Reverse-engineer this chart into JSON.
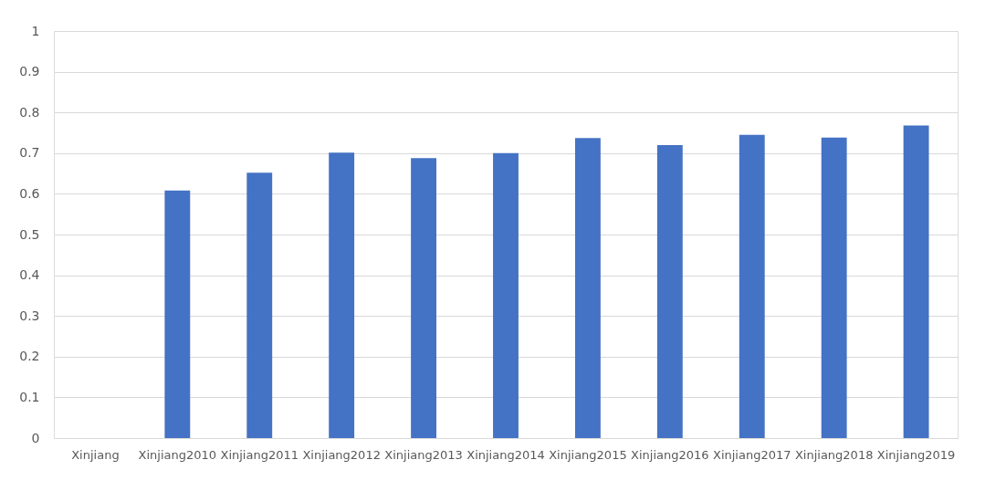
{
  "chart_data": {
    "type": "bar",
    "categories": [
      "Xinjiang",
      "Xinjiang2010",
      "Xinjiang2011",
      "Xinjiang2012",
      "Xinjiang2013",
      "Xinjiang2014",
      "Xinjiang2015",
      "Xinjiang2016",
      "Xinjiang2017",
      "Xinjiang2018",
      "Xinjiang2019"
    ],
    "values": [
      null,
      0.608,
      0.652,
      0.701,
      0.688,
      0.7,
      0.737,
      0.72,
      0.745,
      0.738,
      0.768
    ],
    "color": "#4472c4",
    "ylim": [
      0,
      1
    ],
    "yticks": [
      0,
      0.1,
      0.2,
      0.3,
      0.4,
      0.5,
      0.6,
      0.7,
      0.8,
      0.9,
      1
    ],
    "grid": "y"
  }
}
